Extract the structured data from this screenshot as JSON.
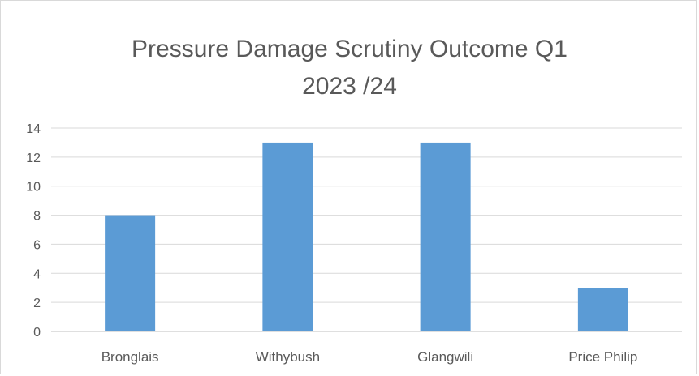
{
  "chart_data": {
    "type": "bar",
    "title_line1": "Pressure Damage Scrutiny Outcome Q1",
    "title_line2": "2023 /24",
    "xlabel": "",
    "ylabel": "",
    "categories": [
      "Bronglais",
      "Withybush",
      "Glangwili",
      "Price Philip"
    ],
    "values": [
      8,
      13,
      13,
      3
    ],
    "ylim": [
      0,
      14
    ],
    "yticks": [
      0,
      2,
      4,
      6,
      8,
      10,
      12,
      14
    ],
    "grid": true,
    "legend": "none",
    "bar_color": "#5b9bd5",
    "grid_color": "#d9d9d9",
    "axis_color": "#bfbfbf"
  }
}
